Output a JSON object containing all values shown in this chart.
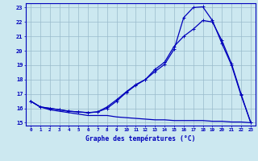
{
  "xlabel": "Graphe des températures (°C)",
  "ylim": [
    14.8,
    23.3
  ],
  "xlim": [
    -0.5,
    23.5
  ],
  "yticks": [
    15,
    16,
    17,
    18,
    19,
    20,
    21,
    22,
    23
  ],
  "xticks": [
    0,
    1,
    2,
    3,
    4,
    5,
    6,
    7,
    8,
    9,
    10,
    11,
    12,
    13,
    14,
    15,
    16,
    17,
    18,
    19,
    20,
    21,
    22,
    23
  ],
  "bg_color": "#cce8f0",
  "line_color": "#0000bb",
  "grid_color": "#99bbcc",
  "line1_y": [
    16.5,
    16.1,
    15.9,
    15.8,
    15.7,
    15.6,
    15.5,
    15.5,
    15.5,
    15.4,
    15.35,
    15.3,
    15.25,
    15.2,
    15.2,
    15.15,
    15.15,
    15.15,
    15.15,
    15.1,
    15.1,
    15.05,
    15.05,
    15.0
  ],
  "line2_y": [
    16.5,
    16.1,
    16.0,
    15.9,
    15.8,
    15.75,
    15.7,
    15.75,
    16.1,
    16.6,
    17.15,
    17.65,
    18.0,
    18.55,
    19.05,
    20.1,
    22.3,
    23.0,
    23.05,
    22.1,
    20.5,
    19.0,
    16.9,
    15.05
  ],
  "line3_y": [
    16.5,
    16.1,
    16.0,
    15.9,
    15.8,
    15.75,
    15.7,
    15.75,
    16.0,
    16.5,
    17.1,
    17.6,
    18.0,
    18.7,
    19.2,
    20.3,
    21.0,
    21.5,
    22.1,
    22.0,
    20.7,
    19.1,
    17.0,
    15.0
  ],
  "xtick_fontsize": 4.2,
  "ytick_fontsize": 5.0,
  "xlabel_fontsize": 5.8,
  "linewidth": 0.9,
  "marker_size": 3.0
}
